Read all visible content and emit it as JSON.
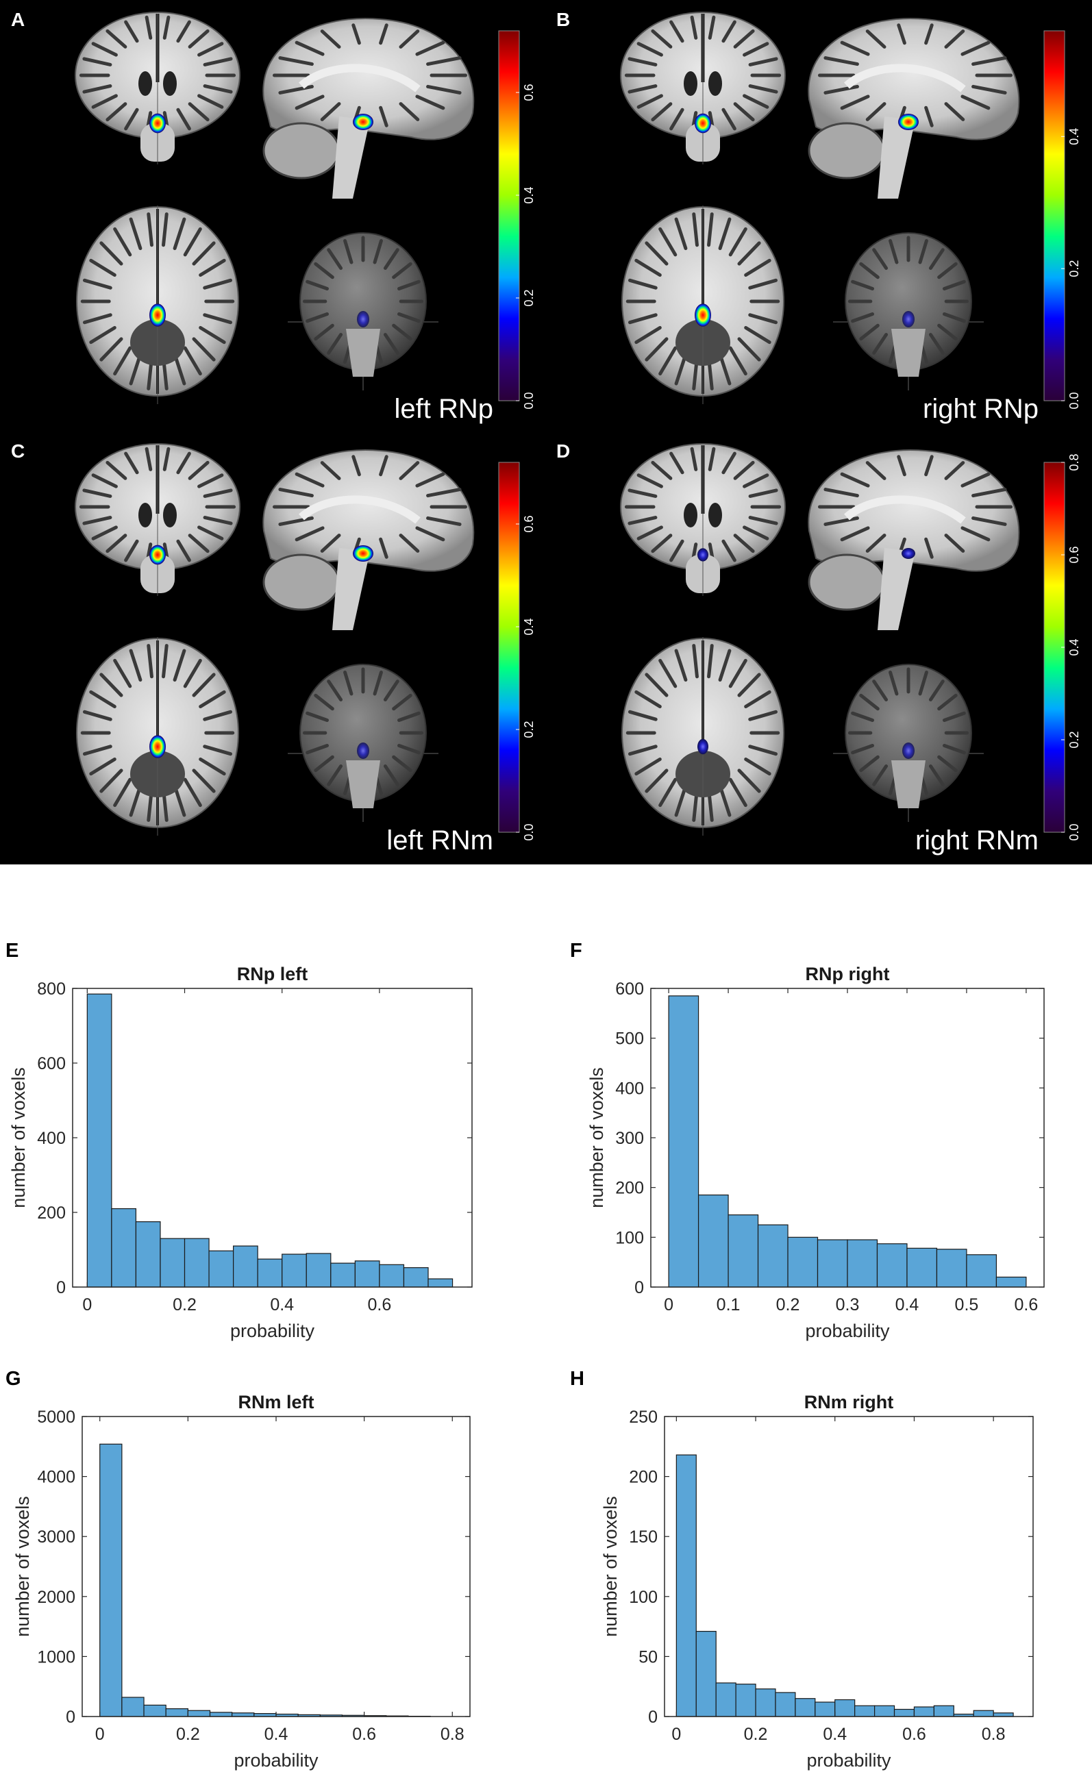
{
  "figure": {
    "brain_panels": [
      {
        "letter": "A",
        "label": "left RNp",
        "colorbar_ticks": [
          "0.0",
          "0.2",
          "0.4",
          "0.6"
        ],
        "colorbar_max": 0.72
      },
      {
        "letter": "B",
        "label": "right RNp",
        "colorbar_ticks": [
          "0.0",
          "0.2",
          "0.4"
        ],
        "colorbar_max": 0.56
      },
      {
        "letter": "C",
        "label": "left RNm",
        "colorbar_ticks": [
          "0.0",
          "0.2",
          "0.4",
          "0.6"
        ],
        "colorbar_max": 0.72
      },
      {
        "letter": "D",
        "label": "right RNm",
        "colorbar_ticks": [
          "0.0",
          "0.2",
          "0.4",
          "0.6",
          "0.8"
        ],
        "colorbar_max": 0.8
      }
    ],
    "colormap": [
      "#2a0038",
      "#30007a",
      "#0000ff",
      "#00aaff",
      "#00ff80",
      "#a0ff00",
      "#ffff00",
      "#ff8000",
      "#ff0000",
      "#800000"
    ],
    "histogram_color": "#5aa5d7"
  },
  "chart_data": [
    {
      "type": "bar",
      "letter": "E",
      "title": "RNp left",
      "xlabel": "probability",
      "ylabel": "number of voxels",
      "bin_edges": [
        0,
        0.05,
        0.1,
        0.15,
        0.2,
        0.25,
        0.3,
        0.35,
        0.4,
        0.45,
        0.5,
        0.55,
        0.6,
        0.65,
        0.7,
        0.75
      ],
      "values": [
        785,
        210,
        175,
        130,
        130,
        97,
        110,
        75,
        88,
        90,
        64,
        70,
        60,
        52,
        22
      ],
      "xlim": [
        -0.03,
        0.79
      ],
      "ylim": [
        0,
        800
      ],
      "xticks": [
        0,
        0.2,
        0.4,
        0.6
      ],
      "xtick_labels": [
        "0",
        "0.2",
        "0.4",
        "0.6"
      ],
      "yticks": [
        0,
        200,
        400,
        600,
        800
      ],
      "ytick_labels": [
        "0",
        "200",
        "400",
        "600",
        "800"
      ]
    },
    {
      "type": "bar",
      "letter": "F",
      "title": "RNp right",
      "xlabel": "probability",
      "ylabel": "number of voxels",
      "bin_edges": [
        0,
        0.05,
        0.1,
        0.15,
        0.2,
        0.25,
        0.3,
        0.35,
        0.4,
        0.45,
        0.5,
        0.55,
        0.6
      ],
      "values": [
        585,
        185,
        145,
        125,
        100,
        95,
        95,
        87,
        78,
        76,
        65,
        20
      ],
      "xlim": [
        -0.03,
        0.63
      ],
      "ylim": [
        0,
        600
      ],
      "xticks": [
        0,
        0.1,
        0.2,
        0.3,
        0.4,
        0.5,
        0.6
      ],
      "xtick_labels": [
        "0",
        "0.1",
        "0.2",
        "0.3",
        "0.4",
        "0.5",
        "0.6"
      ],
      "yticks": [
        0,
        100,
        200,
        300,
        400,
        500,
        600
      ],
      "ytick_labels": [
        "0",
        "100",
        "200",
        "300",
        "400",
        "500",
        "600"
      ]
    },
    {
      "type": "bar",
      "letter": "G",
      "title": "RNm left",
      "xlabel": "probability",
      "ylabel": "number of voxels",
      "bin_edges": [
        0,
        0.05,
        0.1,
        0.15,
        0.2,
        0.25,
        0.3,
        0.35,
        0.4,
        0.45,
        0.5,
        0.55,
        0.6,
        0.65,
        0.7,
        0.75
      ],
      "values": [
        4540,
        320,
        190,
        130,
        100,
        70,
        60,
        50,
        40,
        30,
        25,
        20,
        15,
        10,
        5
      ],
      "xlim": [
        -0.04,
        0.84
      ],
      "ylim": [
        0,
        5000
      ],
      "xticks": [
        0,
        0.2,
        0.4,
        0.6,
        0.8
      ],
      "xtick_labels": [
        "0",
        "0.2",
        "0.4",
        "0.6",
        "0.8"
      ],
      "yticks": [
        0,
        1000,
        2000,
        3000,
        4000,
        5000
      ],
      "ytick_labels": [
        "0",
        "1000",
        "2000",
        "3000",
        "4000",
        "5000"
      ]
    },
    {
      "type": "bar",
      "letter": "H",
      "title": "RNm right",
      "xlabel": "probability",
      "ylabel": "number of voxels",
      "bin_edges": [
        0,
        0.05,
        0.1,
        0.15,
        0.2,
        0.25,
        0.3,
        0.35,
        0.4,
        0.45,
        0.5,
        0.55,
        0.6,
        0.65,
        0.7,
        0.75,
        0.8,
        0.85
      ],
      "values": [
        218,
        71,
        28,
        27,
        23,
        20,
        15,
        12,
        14,
        9,
        9,
        6,
        8,
        9,
        2,
        5,
        3
      ],
      "xlim": [
        -0.03,
        0.9
      ],
      "ylim": [
        0,
        250
      ],
      "xticks": [
        0,
        0.2,
        0.4,
        0.6,
        0.8
      ],
      "xtick_labels": [
        "0",
        "0.2",
        "0.4",
        "0.6",
        "0.8"
      ],
      "yticks": [
        0,
        50,
        100,
        150,
        200,
        250
      ],
      "ytick_labels": [
        "0",
        "50",
        "100",
        "150",
        "200",
        "250"
      ]
    }
  ]
}
